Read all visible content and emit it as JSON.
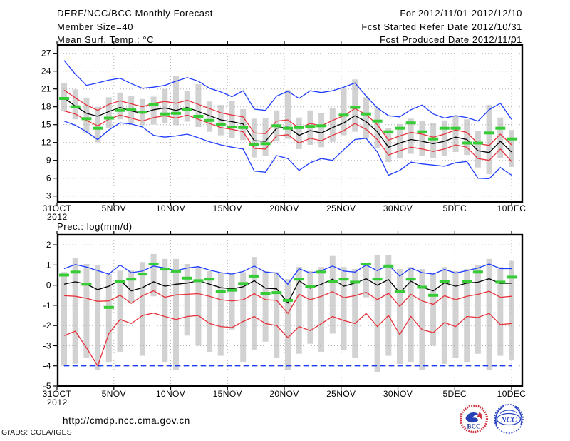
{
  "header": {
    "title": "DERF/NCC/BCC Monthly Forecast",
    "member_size": "Member Size=40",
    "variable": "Mean Surf. Temp.: °C",
    "for_range": "For 2012/11/01-2012/12/10",
    "refer_date": "Fcst Started Refer Date 2012/10/31",
    "produced_date": "Fcst Produced Date 2012/11/01"
  },
  "footer": {
    "url": "http://cmdp.ncc.cma.gov.cn",
    "grads_credit": "GrADS: COLA/IGES",
    "logos": {
      "bcc_label": "BCC",
      "ncc_label": "NCC"
    }
  },
  "colors": {
    "blue": "#1e3cff",
    "red": "#e8323c",
    "green": "#35cc35",
    "black": "#000000",
    "bar": "#d2d2d2",
    "grid": "#b0b0b0"
  },
  "chart_data": [
    {
      "id": "temp",
      "type": "line",
      "title": "Mean Surf. Temp.: °C",
      "x_axis_year": "2012",
      "ylim": [
        2,
        28.4
      ],
      "y_ticks": [
        27,
        24,
        21,
        18,
        15,
        12,
        9,
        6,
        3
      ],
      "x_ticks": {
        "labels": [
          "31OCT",
          "5NOV",
          "10NOV",
          "15NOV",
          "20NOV",
          "25NOV",
          "30NOV",
          "5DEC",
          "10DEC"
        ],
        "days": [
          0,
          5,
          10,
          15,
          20,
          25,
          30,
          35,
          40
        ]
      },
      "n_points": 41,
      "bars": {
        "name": "member-spread-bar",
        "lo": [
          17.2,
          15.9,
          13.6,
          12.0,
          14.4,
          15.9,
          15.2,
          14.9,
          15.0,
          15.3,
          14.9,
          15.5,
          14.6,
          13.8,
          13.2,
          12.7,
          12.4,
          9.5,
          9.7,
          12.2,
          12.6,
          10.9,
          11.6,
          11.2,
          12.1,
          13.2,
          13.8,
          12.8,
          11.0,
          8.7,
          9.3,
          10.1,
          9.8,
          9.4,
          9.8,
          10.4,
          9.9,
          7.8,
          6.7,
          9.4,
          7.9
        ],
        "hi": [
          22.0,
          20.9,
          19.4,
          18.0,
          19.6,
          20.4,
          19.8,
          19.3,
          19.7,
          21.0,
          23.2,
          20.6,
          21.8,
          18.9,
          18.3,
          19.0,
          17.6,
          16.0,
          16.1,
          17.4,
          20.8,
          16.2,
          17.4,
          17.0,
          17.8,
          21.1,
          22.6,
          19.6,
          17.8,
          14.4,
          15.1,
          16.0,
          15.6,
          15.2,
          15.7,
          16.4,
          15.9,
          14.0,
          18.3,
          16.2,
          14.1
        ]
      },
      "series": [
        {
          "name": "ensemble-max",
          "color_key": "blue",
          "kind": "line",
          "values": [
            25.8,
            23.5,
            21.6,
            22.0,
            22.5,
            22.8,
            21.9,
            21.1,
            21.3,
            21.6,
            22.3,
            22.9,
            22.3,
            21.1,
            20.5,
            19.7,
            20.7,
            17.6,
            17.4,
            19.8,
            20.6,
            19.4,
            20.7,
            20.4,
            20.7,
            21.3,
            22.0,
            19.8,
            17.8,
            16.5,
            16.3,
            17.5,
            18.3,
            16.8,
            16.1,
            16.5,
            16.2,
            15.6,
            17.5,
            18.6,
            15.9
          ]
        },
        {
          "name": "upper-quartile",
          "color_key": "red",
          "kind": "line",
          "values": [
            20.8,
            19.5,
            18.3,
            17.4,
            18.4,
            19.0,
            18.5,
            18.0,
            18.6,
            18.9,
            18.6,
            19.1,
            18.4,
            17.7,
            17.0,
            16.6,
            16.3,
            13.6,
            13.5,
            15.6,
            15.8,
            14.4,
            15.2,
            14.8,
            15.7,
            16.5,
            17.7,
            16.7,
            15.0,
            12.4,
            13.1,
            13.7,
            13.4,
            12.9,
            13.4,
            14.1,
            13.7,
            11.8,
            11.5,
            13.4,
            11.6
          ]
        },
        {
          "name": "lower-quartile",
          "color_key": "red",
          "kind": "line",
          "values": [
            17.3,
            16.8,
            15.7,
            14.8,
            15.9,
            16.6,
            16.1,
            15.6,
            16.2,
            16.5,
            16.1,
            16.6,
            15.9,
            15.2,
            14.5,
            14.2,
            13.8,
            11.0,
            10.9,
            13.1,
            13.3,
            11.9,
            12.7,
            12.3,
            13.2,
            14.0,
            15.2,
            14.2,
            12.5,
            9.9,
            10.6,
            11.2,
            10.9,
            10.5,
            10.9,
            11.6,
            11.2,
            9.3,
            9.0,
            10.9,
            8.8
          ]
        },
        {
          "name": "ensemble-min",
          "color_key": "blue",
          "kind": "line",
          "values": [
            15.6,
            14.9,
            13.8,
            12.5,
            14.1,
            15.3,
            15.1,
            14.6,
            13.2,
            12.9,
            13.1,
            13.4,
            12.8,
            12.1,
            11.6,
            11.2,
            10.9,
            7.2,
            7.0,
            9.8,
            9.3,
            7.3,
            8.6,
            9.3,
            9.0,
            10.8,
            12.5,
            12.7,
            10.4,
            6.5,
            7.3,
            8.7,
            8.4,
            8.2,
            8.0,
            8.6,
            8.8,
            6.0,
            5.9,
            7.8,
            6.5
          ]
        },
        {
          "name": "ensemble-mean",
          "color_key": "black",
          "kind": "line",
          "values": [
            19.5,
            18.1,
            16.9,
            16.4,
            17.2,
            17.9,
            17.3,
            16.9,
            17.5,
            17.8,
            17.4,
            17.9,
            17.2,
            16.5,
            15.8,
            15.5,
            15.1,
            12.3,
            12.2,
            14.4,
            14.6,
            13.2,
            14.0,
            13.6,
            14.5,
            15.3,
            16.5,
            15.5,
            13.8,
            11.2,
            11.9,
            12.5,
            12.2,
            11.8,
            12.2,
            12.9,
            12.5,
            10.6,
            10.3,
            12.2,
            10.4
          ]
        },
        {
          "name": "observation",
          "color_key": "green",
          "kind": "dash-marker",
          "values": [
            19.4,
            18.0,
            16.0,
            14.4,
            16.1,
            17.4,
            17.6,
            17.1,
            18.4,
            16.8,
            16.9,
            17.5,
            16.4,
            15.7,
            15.0,
            14.6,
            14.5,
            11.6,
            11.8,
            14.8,
            14.4,
            14.5,
            14.7,
            14.8,
            null,
            16.6,
            17.9,
            16.8,
            15.6,
            13.8,
            14.4,
            15.3,
            13.8,
            12.6,
            14.4,
            14.4,
            11.9,
            11.9,
            13.6,
            14.4,
            12.6
          ]
        }
      ]
    },
    {
      "id": "precip",
      "type": "line",
      "title": "Prec.: log(mm/d)",
      "x_axis_year": "2012",
      "ylim": [
        -5,
        2.5
      ],
      "y_ticks": [
        2,
        1,
        0,
        -1,
        -2,
        -3,
        -4,
        -5
      ],
      "x_ticks": {
        "labels": [
          "31OCT",
          "5NOV",
          "10NOV",
          "15NOV",
          "20NOV",
          "25NOV",
          "30NOV",
          "5DEC",
          "10DEC"
        ],
        "days": [
          0,
          5,
          10,
          15,
          20,
          25,
          30,
          35,
          40
        ]
      },
      "n_points": 41,
      "bars": {
        "name": "member-spread-bar",
        "lo": [
          -4.0,
          -3.9,
          -3.6,
          -4.2,
          -3.8,
          -3.3,
          -0.9,
          -3.5,
          -0.55,
          -3.8,
          -4.2,
          -2.5,
          -3.0,
          -3.3,
          -3.5,
          -2.2,
          -3.8,
          -3.2,
          -2.8,
          -3.6,
          -4.2,
          -3.4,
          -2.9,
          -3.3,
          -2.4,
          -3.2,
          -3.6,
          -0.6,
          -4.3,
          -3.5,
          -3.9,
          -3.8,
          -4.2,
          -3.0,
          -3.9,
          -3.6,
          -3.8,
          -3.4,
          -4.2,
          -3.5,
          -3.7
        ],
        "hi": [
          0.65,
          1.35,
          1.05,
          1.0,
          0.55,
          0.72,
          0.72,
          1.15,
          1.55,
          1.3,
          1.3,
          1.05,
          0.9,
          0.7,
          0.6,
          0.55,
          0.65,
          1.4,
          0.7,
          0.65,
          0.3,
          0.9,
          0.7,
          0.9,
          1.45,
          0.9,
          0.8,
          1.1,
          1.5,
          1.5,
          0.8,
          0.9,
          0.8,
          0.6,
          0.9,
          0.7,
          0.8,
          1.0,
          1.3,
          0.9,
          1.2
        ]
      },
      "series": [
        {
          "name": "ensemble-max",
          "color_key": "blue",
          "kind": "line",
          "values": [
            0.82,
            1.02,
            0.9,
            0.72,
            0.55,
            1.0,
            0.62,
            0.7,
            0.95,
            0.85,
            0.72,
            0.85,
            0.92,
            0.75,
            0.62,
            0.55,
            0.68,
            0.95,
            0.65,
            0.6,
            0.05,
            0.82,
            0.6,
            0.72,
            0.95,
            0.7,
            0.65,
            1.0,
            0.72,
            1.0,
            0.45,
            0.85,
            0.62,
            0.55,
            0.78,
            0.6,
            0.72,
            0.85,
            1.05,
            0.82,
            0.82
          ]
        },
        {
          "name": "upper-quartile",
          "color_key": "red",
          "kind": "line",
          "values": [
            -0.52,
            -0.55,
            -0.65,
            -0.8,
            -0.78,
            -0.5,
            -0.9,
            -0.52,
            -0.28,
            -0.6,
            -0.48,
            -0.45,
            -0.42,
            -0.55,
            -0.72,
            -0.78,
            -0.72,
            -0.42,
            -0.72,
            -0.75,
            -1.4,
            -0.45,
            -0.72,
            -0.55,
            -0.32,
            -0.62,
            -0.52,
            -0.35,
            -0.72,
            -0.4,
            -1.05,
            -0.45,
            -0.78,
            -0.95,
            -0.52,
            -0.72,
            -0.55,
            -0.45,
            -0.3,
            -0.6,
            -0.55
          ]
        },
        {
          "name": "lower-quartile",
          "color_key": "red",
          "kind": "line",
          "values": [
            -2.5,
            -2.28,
            -3.1,
            -4.0,
            -2.4,
            -1.7,
            -1.9,
            -1.5,
            -1.38,
            -1.55,
            -1.7,
            -1.55,
            -1.5,
            -1.9,
            -2.05,
            -2.1,
            -1.8,
            -1.55,
            -1.9,
            -2.0,
            -2.6,
            -2.05,
            -2.25,
            -1.9,
            -1.55,
            -1.75,
            -1.9,
            -1.4,
            -2.05,
            -1.5,
            -2.45,
            -1.55,
            -2.2,
            -2.35,
            -1.85,
            -2.05,
            -1.55,
            -1.6,
            -1.4,
            -1.95,
            -1.9
          ]
        },
        {
          "name": "ensemble-min",
          "color_key": "blue",
          "kind": "line",
          "dashed": true,
          "values": [
            -4.0,
            -4.0,
            -4.0,
            -4.0,
            -4.0,
            -4.0,
            -4.0,
            -4.0,
            -4.0,
            -4.0,
            -4.0,
            -4.0,
            -4.0,
            -4.0,
            -4.0,
            -4.0,
            -4.0,
            -4.0,
            -4.0,
            -4.0,
            -4.0,
            -4.0,
            -4.0,
            -4.0,
            -4.0,
            -4.0,
            -4.0,
            -4.0,
            -4.0,
            -4.0,
            -4.0,
            -4.0,
            -4.0,
            -4.0,
            -4.0,
            -4.0,
            -4.0,
            -4.0,
            -4.0,
            -4.0,
            -4.0
          ]
        },
        {
          "name": "ensemble-mean",
          "color_key": "black",
          "kind": "line",
          "values": [
            0.05,
            0.17,
            0.05,
            -0.22,
            -0.05,
            0.25,
            -0.28,
            -0.12,
            0.17,
            -0.05,
            0.05,
            0.1,
            0.22,
            0.05,
            -0.12,
            -0.18,
            -0.08,
            0.22,
            -0.15,
            -0.18,
            -0.88,
            0.22,
            -0.15,
            0.05,
            0.3,
            -0.05,
            0.1,
            0.32,
            0.0,
            0.28,
            -0.38,
            0.2,
            -0.1,
            -0.28,
            0.12,
            -0.05,
            0.1,
            0.15,
            0.32,
            0.08,
            0.1
          ]
        },
        {
          "name": "observation",
          "color_key": "green",
          "kind": "dash-marker",
          "values": [
            0.5,
            0.65,
            0.05,
            null,
            -1.1,
            0.2,
            0.3,
            0.55,
            1.05,
            0.8,
            0.7,
            0.35,
            0.22,
            0.3,
            -0.32,
            -0.25,
            0.08,
            0.45,
            -0.4,
            -0.37,
            -0.75,
            0.3,
            -0.05,
            0.65,
            0.2,
            0.3,
            0.15,
            1.05,
            0.3,
            0.95,
            -0.3,
            0.3,
            -0.1,
            -0.5,
            0.2,
            null,
            0.2,
            0.65,
            null,
            0.15,
            0.4
          ]
        }
      ]
    }
  ]
}
